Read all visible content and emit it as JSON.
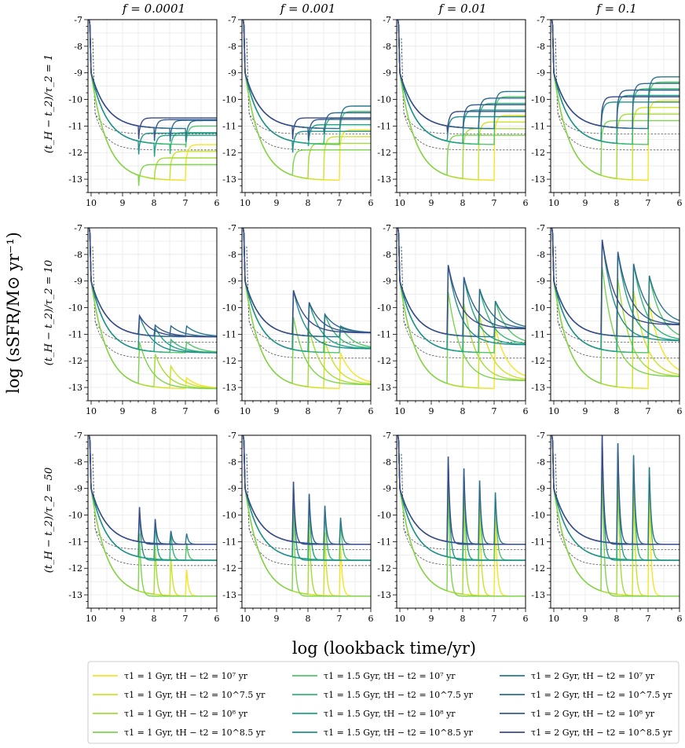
{
  "colors": {
    "t1_1": [
      "#f5e524",
      "#cde32a",
      "#a5dc38",
      "#7ed34f"
    ],
    "t1_15": [
      "#52c569",
      "#34b679",
      "#1fa287",
      "#22908c"
    ],
    "t1_2": [
      "#29788e",
      "#2e6b8e",
      "#345b8d",
      "#3b4a8a"
    ],
    "reference": "#555555"
  },
  "chart_data": {
    "type": "line",
    "title": "",
    "xlabel": "log (lookback time/yr)",
    "ylabel": "log (sSFR/M⊙ yr⁻¹)",
    "xlim": [
      10.1,
      6.0
    ],
    "ylim": [
      -13.5,
      -7.0
    ],
    "x_ticks": [
      "10",
      "9",
      "8",
      "7",
      "6"
    ],
    "y_ticks": [
      "-7",
      "-8",
      "-9",
      "-10",
      "-11",
      "-12",
      "-13"
    ],
    "grid": true,
    "layout": "3 rows x 4 columns, shared axes",
    "columns": [
      "f = 0.0001",
      "f = 0.001",
      "f = 0.01",
      "f = 0.1"
    ],
    "f_values": [
      0.0001,
      0.001,
      0.01,
      0.1
    ],
    "rows": [
      "(t_H − t_2)/τ_2 = 1",
      "(t_H − t_2)/τ_2 = 10",
      "(t_H − t_2)/τ_2 = 50"
    ],
    "ratio_values": [
      1,
      10,
      50
    ],
    "tau1_gyr": [
      1,
      1.5,
      2
    ],
    "baseline_ssfr": [
      -13.05,
      -11.7,
      -11.1
    ],
    "burst_log_lookback": [
      7.0,
      7.5,
      8.0,
      8.5
    ],
    "reference_curves": [
      {
        "name": "dashed reference 1",
        "asymptote": -11.3
      },
      {
        "name": "dashed reference 2",
        "asymptote": -11.9
      }
    ],
    "legend": [
      "τ1 = 1 Gyr, tH − t2 = 10⁷ yr",
      "τ1 = 1 Gyr, tH − t2 = 10^7.5 yr",
      "τ1 = 1 Gyr, tH − t2 = 10⁸ yr",
      "τ1 = 1 Gyr, tH − t2 = 10^8.5 yr",
      "τ1 = 1.5 Gyr, tH − t2 = 10⁷ yr",
      "τ1 = 1.5 Gyr, tH − t2 = 10^7.5 yr",
      "τ1 = 1.5 Gyr, tH − t2 = 10⁸ yr",
      "τ1 = 1.5 Gyr, tH − t2 = 10^8.5 yr",
      "τ1 = 2 Gyr, tH − t2 = 10⁷ yr",
      "τ1 = 2 Gyr, tH − t2 = 10^7.5 yr",
      "τ1 = 2 Gyr, tH − t2 = 10⁸ yr",
      "τ1 = 2 Gyr, tH − t2 = 10^8.5 yr"
    ]
  }
}
